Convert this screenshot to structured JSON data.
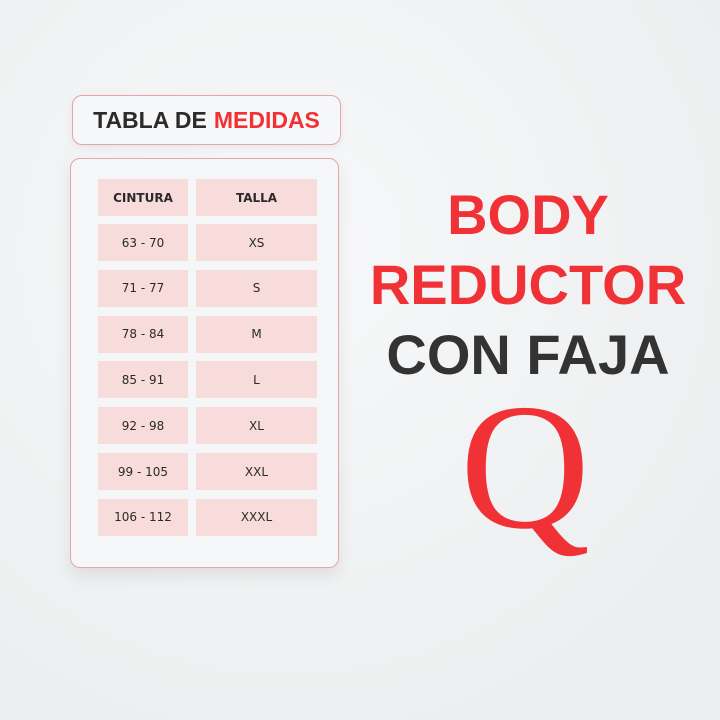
{
  "title": {
    "part1": "TABLA DE",
    "part2": "MEDIDAS"
  },
  "table": {
    "headers": [
      "CINTURA",
      "TALLA"
    ],
    "rows": [
      [
        "63 - 70",
        "XS"
      ],
      [
        "71 - 77",
        "S"
      ],
      [
        "78 - 84",
        "M"
      ],
      [
        "85 - 91",
        "L"
      ],
      [
        "92 - 98",
        "XL"
      ],
      [
        "99 - 105",
        "XXL"
      ],
      [
        "106 - 112",
        "XXXL"
      ]
    ]
  },
  "headline": {
    "line1": "BODY",
    "line2": "REDUCTOR",
    "line3": "CON FAJA"
  },
  "logo": {
    "text": "Q"
  },
  "colors": {
    "accent": "#f03237",
    "dark": "#2b2b2b",
    "cell": "#f8dcdc"
  }
}
